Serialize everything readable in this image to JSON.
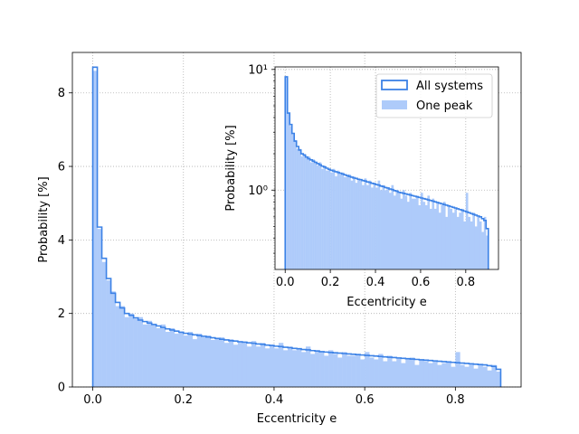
{
  "chart_data": [
    {
      "type": "bar",
      "role": "main",
      "xlabel": "Eccentricity e",
      "ylabel": "Probability [%]",
      "xlim": [
        -0.045,
        0.945
      ],
      "ylim": [
        0,
        9.1
      ],
      "xticks": [
        0.0,
        0.2,
        0.4,
        0.6,
        0.8
      ],
      "xtick_labels": [
        "0.0",
        "0.2",
        "0.4",
        "0.6",
        "0.8"
      ],
      "yticks": [
        0,
        2,
        4,
        6,
        8
      ],
      "ytick_labels": [
        "0",
        "2",
        "4",
        "6",
        "8"
      ],
      "grid": true,
      "bin_width": 0.01,
      "bin_start": 0.0,
      "series": [
        {
          "name": "All systems",
          "style": "step",
          "color": "#3c82e6",
          "values": [
            8.7,
            4.35,
            3.5,
            2.95,
            2.55,
            2.3,
            2.15,
            2.0,
            1.95,
            1.88,
            1.82,
            1.78,
            1.74,
            1.7,
            1.66,
            1.62,
            1.58,
            1.55,
            1.52,
            1.49,
            1.46,
            1.44,
            1.42,
            1.4,
            1.38,
            1.36,
            1.34,
            1.32,
            1.3,
            1.28,
            1.26,
            1.25,
            1.23,
            1.22,
            1.2,
            1.19,
            1.17,
            1.16,
            1.14,
            1.13,
            1.11,
            1.1,
            1.08,
            1.07,
            1.05,
            1.04,
            1.02,
            1.01,
            0.99,
            0.98,
            0.96,
            0.95,
            0.94,
            0.93,
            0.92,
            0.91,
            0.9,
            0.89,
            0.88,
            0.87,
            0.86,
            0.85,
            0.84,
            0.83,
            0.82,
            0.81,
            0.8,
            0.79,
            0.78,
            0.77,
            0.76,
            0.75,
            0.74,
            0.73,
            0.72,
            0.71,
            0.7,
            0.69,
            0.68,
            0.67,
            0.66,
            0.65,
            0.64,
            0.63,
            0.62,
            0.61,
            0.6,
            0.58,
            0.56,
            0.48
          ]
        },
        {
          "name": "One peak",
          "style": "filled",
          "color": "#aecbfa",
          "values": [
            8.6,
            4.3,
            3.4,
            2.9,
            2.6,
            2.2,
            2.2,
            1.9,
            2.0,
            1.85,
            1.9,
            1.7,
            1.8,
            1.72,
            1.6,
            1.7,
            1.5,
            1.6,
            1.45,
            1.5,
            1.4,
            1.5,
            1.3,
            1.45,
            1.35,
            1.4,
            1.28,
            1.3,
            1.35,
            1.2,
            1.3,
            1.15,
            1.25,
            1.2,
            1.1,
            1.25,
            1.1,
            1.2,
            1.05,
            1.15,
            1.05,
            1.2,
            1.0,
            1.1,
            1.0,
            1.05,
            0.95,
            1.1,
            0.9,
            1.0,
            0.95,
            0.85,
            1.0,
            0.9,
            0.8,
            0.95,
            0.85,
            0.85,
            0.9,
            0.75,
            0.95,
            0.8,
            0.75,
            0.9,
            0.7,
            0.85,
            0.7,
            0.8,
            0.65,
            0.75,
            0.8,
            0.6,
            0.75,
            0.7,
            0.65,
            0.7,
            0.6,
            0.65,
            0.7,
            0.55,
            0.95,
            0.6,
            0.55,
            0.65,
            0.5,
            0.6,
            0.55,
            0.45,
            0.6,
            0.42
          ]
        }
      ]
    },
    {
      "type": "bar",
      "role": "inset",
      "yscale": "log",
      "xlabel": "Eccentricity e",
      "ylabel": "Probability [%]",
      "xlim": [
        -0.045,
        0.945
      ],
      "ylim": [
        0.22,
        10.5
      ],
      "xticks": [
        0.0,
        0.2,
        0.4,
        0.6,
        0.8
      ],
      "xtick_labels": [
        "0.0",
        "0.2",
        "0.4",
        "0.6",
        "0.8"
      ],
      "yticks": [
        1,
        10
      ],
      "ytick_labels": [
        "10⁰",
        "10¹"
      ],
      "grid": true,
      "legend_position": "upper-right",
      "legend": [
        {
          "label": "All systems",
          "style": "outline"
        },
        {
          "label": "One peak",
          "style": "filled"
        }
      ]
    }
  ]
}
